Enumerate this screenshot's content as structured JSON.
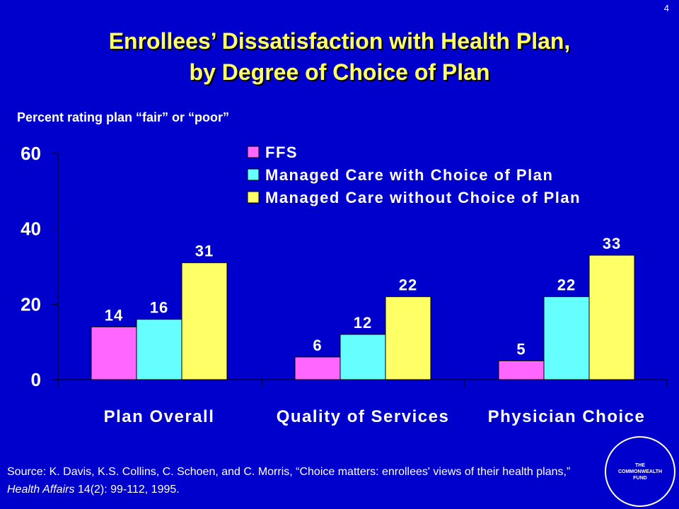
{
  "page_number": "4",
  "title_line1": "Enrollees’ Dissatisfaction with Health Plan,",
  "title_line2": "by Degree of Choice of Plan",
  "subtitle": "Percent rating plan “fair” or “poor”",
  "source": {
    "prefix": "Source: K. Davis, K.S. Collins, C. Schoen, and C. Morris, “Choice matters: enrollees' views of their health plans,” ",
    "journal": "Health Affairs",
    "suffix": " 14(2): 99-112, 1995."
  },
  "logo": {
    "line1": "THE",
    "line2": "COMMONWEALTH",
    "line3": "FUND"
  },
  "colors": {
    "background": "#0000CC",
    "title": "#FFFF66",
    "text": "#FFFFFF"
  },
  "chart_data": {
    "type": "bar",
    "categories": [
      "Plan Overall",
      "Quality of Services",
      "Physician Choice"
    ],
    "series": [
      {
        "name": "FFS",
        "values": [
          14,
          6,
          5
        ],
        "color": "#FF66FF"
      },
      {
        "name": "Managed Care with Choice of Plan",
        "values": [
          16,
          12,
          22
        ],
        "color": "#66FFFF"
      },
      {
        "name": "Managed Care without Choice of Plan",
        "values": [
          31,
          22,
          33
        ],
        "color": "#FFFF66"
      }
    ],
    "ylim": [
      0,
      60
    ],
    "yticks": [
      0,
      20,
      40,
      60
    ],
    "grid": false,
    "legend_position": "top-right",
    "data_labels": true
  }
}
